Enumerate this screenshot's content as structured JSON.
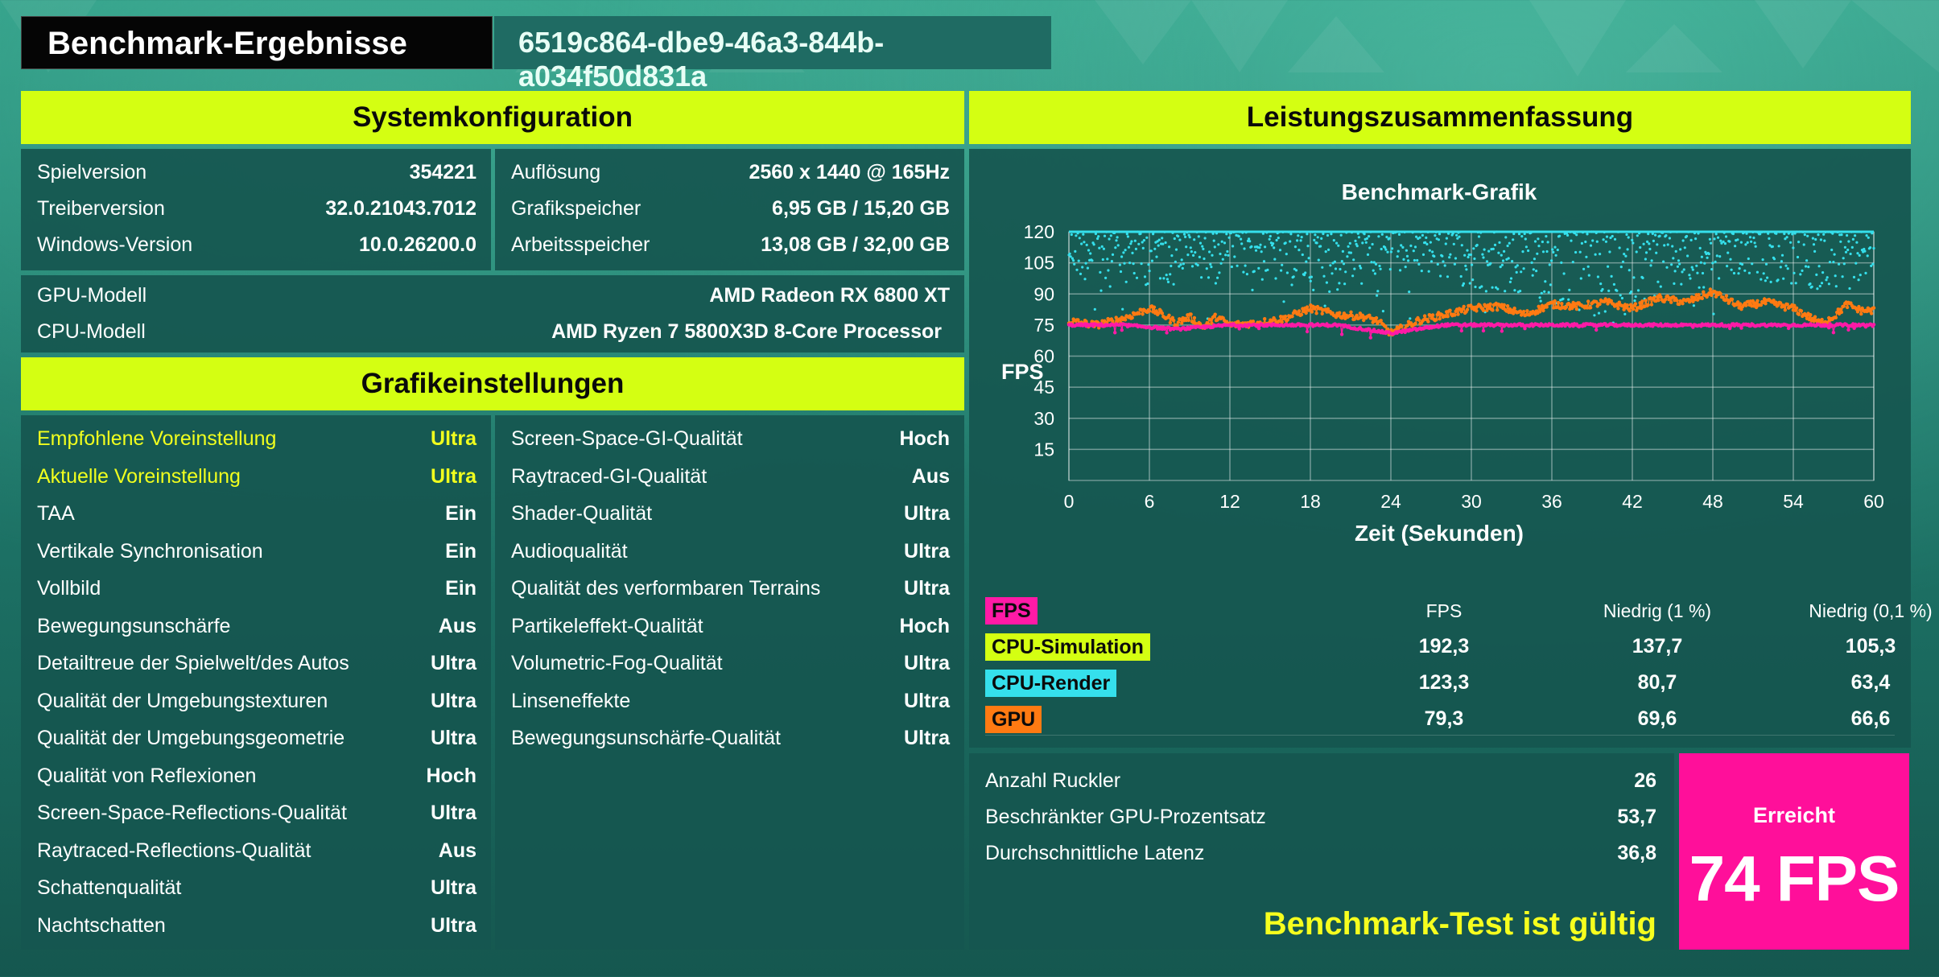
{
  "header": {
    "title": "Benchmark-Ergebnisse",
    "run_id": "6519c864-dbe9-46a3-844b-a034f50d831a"
  },
  "system": {
    "heading": "Systemkonfiguration",
    "left": [
      {
        "label": "Spielversion",
        "value": "354221"
      },
      {
        "label": "Treiberversion",
        "value": "32.0.21043.7012"
      },
      {
        "label": "Windows-Version",
        "value": "10.0.26200.0"
      }
    ],
    "right": [
      {
        "label": "Auflösung",
        "value": "2560 x 1440 @ 165Hz"
      },
      {
        "label": "Grafikspeicher",
        "value": "6,95 GB / 15,20 GB"
      },
      {
        "label": "Arbeitsspeicher",
        "value": "13,08 GB / 32,00 GB"
      }
    ],
    "hardware": [
      {
        "label": "GPU-Modell",
        "value": "AMD Radeon RX 6800 XT"
      },
      {
        "label": "CPU-Modell",
        "value": "AMD Ryzen 7 5800X3D 8-Core Processor"
      }
    ]
  },
  "graphics": {
    "heading": "Grafikeinstellungen",
    "left": [
      {
        "label": "Empfohlene Voreinstellung",
        "value": "Ultra",
        "highlight": true
      },
      {
        "label": "Aktuelle Voreinstellung",
        "value": "Ultra",
        "highlight": true
      },
      {
        "label": "TAA",
        "value": "Ein"
      },
      {
        "label": "Vertikale Synchronisation",
        "value": "Ein"
      },
      {
        "label": "Vollbild",
        "value": "Ein"
      },
      {
        "label": "Bewegungsunschärfe",
        "value": "Aus"
      },
      {
        "label": "Detailtreue der Spielwelt/des Autos",
        "value": "Ultra"
      },
      {
        "label": "Qualität der Umgebungstexturen",
        "value": "Ultra"
      },
      {
        "label": "Qualität der Umgebungsgeometrie",
        "value": "Ultra"
      },
      {
        "label": "Qualität von Reflexionen",
        "value": "Hoch"
      },
      {
        "label": "Screen-Space-Reflections-Qualität",
        "value": "Ultra"
      },
      {
        "label": "Raytraced-Reflections-Qualität",
        "value": "Aus"
      },
      {
        "label": "Schattenqualität",
        "value": "Ultra"
      },
      {
        "label": "Nachtschatten",
        "value": "Ultra"
      }
    ],
    "right": [
      {
        "label": "Screen-Space-GI-Qualität",
        "value": "Hoch"
      },
      {
        "label": "Raytraced-GI-Qualität",
        "value": "Aus"
      },
      {
        "label": "Shader-Qualität",
        "value": "Ultra"
      },
      {
        "label": "Audioqualität",
        "value": "Ultra"
      },
      {
        "label": "Qualität des verformbaren Terrains",
        "value": "Ultra"
      },
      {
        "label": "Partikeleffekt-Qualität",
        "value": "Hoch"
      },
      {
        "label": "Volumetric-Fog-Qualität",
        "value": "Ultra"
      },
      {
        "label": "Linseneffekte",
        "value": "Ultra"
      },
      {
        "label": "Bewegungsunschärfe-Qualität",
        "value": "Ultra"
      }
    ]
  },
  "performance": {
    "heading": "Leistungszusammenfassung",
    "table": {
      "columns": [
        "FPS",
        "Niedrig (1 %)",
        "Niedrig (0,1 %)"
      ],
      "rows": [
        {
          "label": "FPS",
          "color": "#ff1aa6",
          "values": []
        },
        {
          "label": "CPU-Simulation",
          "color": "#d4ff12",
          "values": [
            "192,3",
            "137,7",
            "105,3"
          ]
        },
        {
          "label": "CPU-Render",
          "color": "#35e0ec",
          "values": [
            "123,3",
            "80,7",
            "63,4"
          ]
        },
        {
          "label": "GPU",
          "color": "#ff7a12",
          "values": [
            "79,3",
            "69,6",
            "66,6"
          ]
        }
      ]
    },
    "stats": [
      {
        "label": "Anzahl Ruckler",
        "value": "26"
      },
      {
        "label": "Beschränkter GPU-Prozentsatz",
        "value": "53,7"
      },
      {
        "label": "Durchschnittliche Latenz",
        "value": "36,8"
      }
    ],
    "validity": "Benchmark-Test ist gültig",
    "achieved_label": "Erreicht",
    "achieved_value": "74 FPS"
  },
  "chart_data": {
    "type": "scatter",
    "title": "Benchmark-Grafik",
    "xlabel": "Zeit (Sekunden)",
    "ylabel": "FPS",
    "xlim": [
      0,
      60
    ],
    "ylim": [
      0,
      120
    ],
    "xticks": [
      "0",
      "6",
      "12",
      "18",
      "24",
      "30",
      "36",
      "42",
      "48",
      "54",
      "60"
    ],
    "yticks": [
      "15",
      "30",
      "45",
      "60",
      "75",
      "90",
      "105",
      "120"
    ],
    "grid": true,
    "series": [
      {
        "name": "CPU-Render",
        "color": "#35e0ec",
        "x": [
          0,
          4,
          8,
          12,
          16,
          20,
          24,
          28,
          32,
          36,
          40,
          44,
          48,
          52,
          56,
          60
        ],
        "y": [
          120,
          114,
          118,
          120,
          116,
          112,
          120,
          119,
          110,
          106,
          98,
          110,
          116,
          118,
          113,
          120
        ]
      },
      {
        "name": "GPU",
        "color": "#ff7a12",
        "x": [
          0,
          2,
          4,
          6,
          7,
          8,
          9,
          10,
          11,
          12,
          14,
          16,
          18,
          20,
          22,
          23,
          24,
          26,
          28,
          30,
          32,
          34,
          36,
          38,
          40,
          42,
          44,
          46,
          48,
          50,
          52,
          54,
          56,
          57,
          58,
          59,
          60
        ],
        "y": [
          77,
          75,
          78,
          83,
          80,
          76,
          79,
          74,
          79,
          75,
          76,
          78,
          83,
          80,
          79,
          77,
          71,
          77,
          80,
          83,
          84,
          80,
          85,
          84,
          86,
          83,
          88,
          86,
          91,
          84,
          86,
          83,
          76,
          79,
          85,
          82,
          82
        ]
      },
      {
        "name": "FPS",
        "color": "#ff1aa6",
        "x": [
          0,
          4,
          8,
          12,
          16,
          20,
          24,
          28,
          32,
          36,
          40,
          44,
          48,
          52,
          56,
          60
        ],
        "y": [
          75,
          75,
          73,
          75,
          75,
          75,
          71,
          75,
          75,
          75,
          75,
          75,
          75,
          75,
          75,
          75
        ]
      }
    ]
  }
}
